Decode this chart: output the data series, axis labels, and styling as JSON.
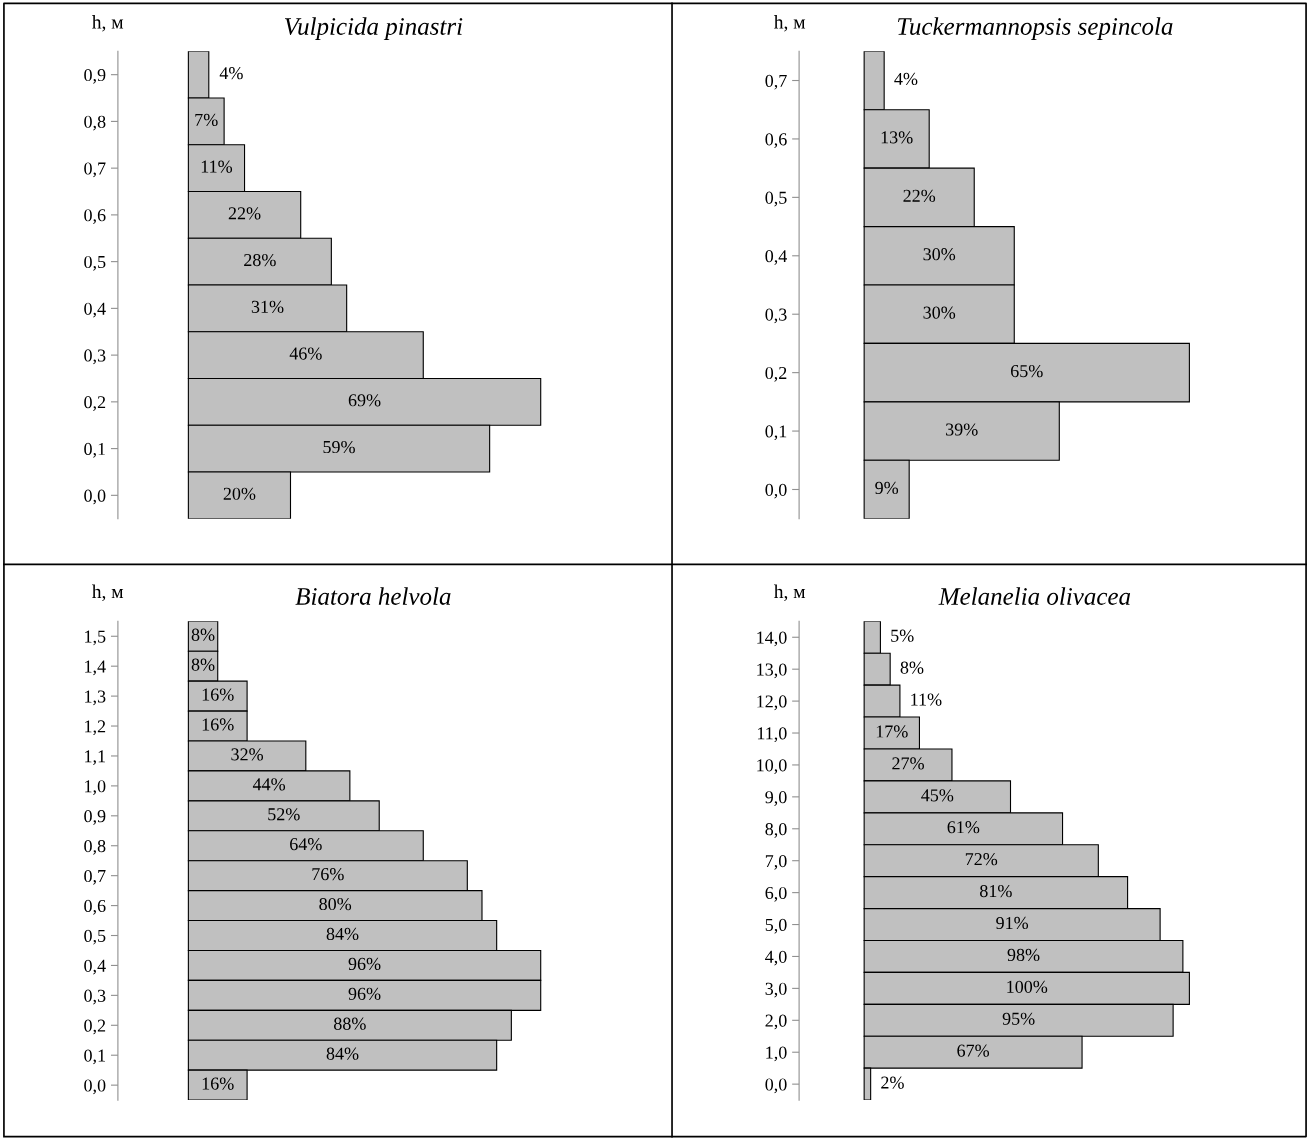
{
  "chart_data": [
    {
      "type": "bar",
      "orientation": "horizontal",
      "title": "Vulpicida pinastri",
      "ylabel": "h, м",
      "tick_labels": "y",
      "color": "#c0c0c0",
      "categories": [
        "0,9",
        "0,8",
        "0,7",
        "0,6",
        "0,5",
        "0,4",
        "0,3",
        "0,2",
        "0,1",
        "0,0"
      ],
      "values": [
        4,
        7,
        11,
        22,
        28,
        31,
        46,
        69,
        59,
        20
      ],
      "value_labels": [
        "4%",
        "7%",
        "11%",
        "22%",
        "28%",
        "31%",
        "46%",
        "69%",
        "59%",
        "20%"
      ]
    },
    {
      "type": "bar",
      "orientation": "horizontal",
      "title": "Tuckermannopsis sepincola",
      "ylabel": "h, м",
      "tick_labels": "y",
      "color": "#c0c0c0",
      "categories": [
        "0,7",
        "0,6",
        "0,5",
        "0,4",
        "0,3",
        "0,2",
        "0,1",
        "0,0"
      ],
      "values": [
        4,
        13,
        22,
        30,
        30,
        65,
        39,
        9
      ],
      "value_labels": [
        "4%",
        "13%",
        "22%",
        "30%",
        "30%",
        "65%",
        "39%",
        "9%"
      ]
    },
    {
      "type": "bar",
      "orientation": "horizontal",
      "title": "Biatora helvola",
      "ylabel": "h, м",
      "tick_labels": "y",
      "color": "#c0c0c0",
      "categories": [
        "1,5",
        "1,4",
        "1,3",
        "1,2",
        "1,1",
        "1,0",
        "0,9",
        "0,8",
        "0,7",
        "0,6",
        "0,5",
        "0,4",
        "0,3",
        "0,2",
        "0,1",
        "0,0"
      ],
      "values": [
        8,
        8,
        16,
        16,
        32,
        44,
        52,
        64,
        76,
        80,
        84,
        96,
        96,
        88,
        84,
        16
      ],
      "value_labels": [
        "8%",
        "8%",
        "16%",
        "16%",
        "32%",
        "44%",
        "52%",
        "64%",
        "76%",
        "80%",
        "84%",
        "96%",
        "96%",
        "88%",
        "84%",
        "16%"
      ]
    },
    {
      "type": "bar",
      "orientation": "horizontal",
      "title": "Melanelia olivacea",
      "ylabel": "h, м",
      "tick_labels": "y",
      "color": "#c0c0c0",
      "categories": [
        "14,0",
        "13,0",
        "12,0",
        "11,0",
        "10,0",
        "9,0",
        "8,0",
        "7,0",
        "6,0",
        "5,0",
        "4,0",
        "3,0",
        "2,0",
        "1,0",
        "0,0"
      ],
      "values": [
        5,
        8,
        11,
        17,
        27,
        45,
        61,
        72,
        81,
        91,
        98,
        100,
        95,
        67,
        2
      ],
      "value_labels": [
        "5%",
        "8%",
        "11%",
        "17%",
        "27%",
        "45%",
        "61%",
        "72%",
        "81%",
        "91%",
        "98%",
        "100%",
        "95%",
        "67%",
        "2%"
      ]
    }
  ]
}
